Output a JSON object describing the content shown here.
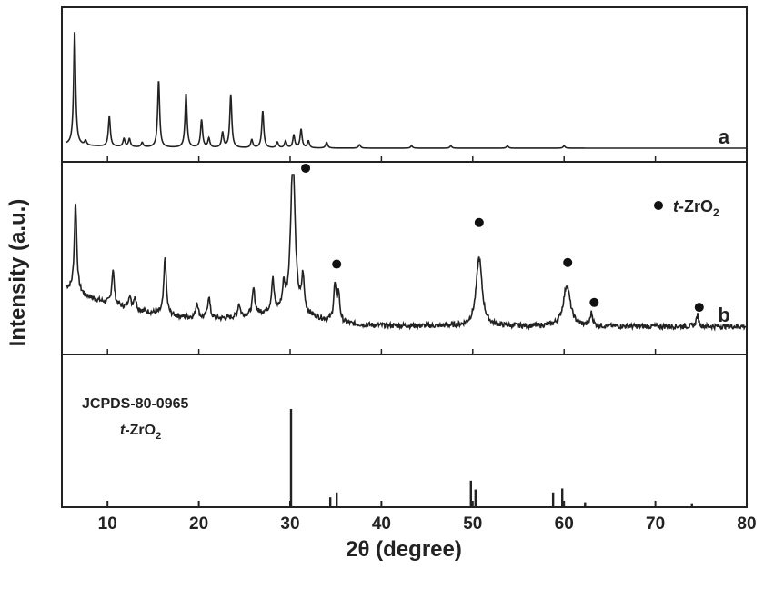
{
  "chart_data": {
    "type": "line",
    "xlabel_prefix": "2θ",
    "xlabel_suffix": " (degree)",
    "ylabel": "Intensity (a.u.)",
    "xlim": [
      5,
      80
    ],
    "xticks": [
      10,
      20,
      30,
      40,
      50,
      60,
      70,
      80
    ],
    "x_tick_labels": [
      "10",
      "20",
      "30",
      "40",
      "50",
      "60",
      "70",
      "80"
    ],
    "panels": [
      {
        "label": "a",
        "series_kind": "line",
        "baseline": 3,
        "ylim": [
          0,
          100
        ],
        "peaks": [
          {
            "x": 6.4,
            "y": 100
          },
          {
            "x": 7.6,
            "y": 4
          },
          {
            "x": 10.2,
            "y": 26
          },
          {
            "x": 11.8,
            "y": 7
          },
          {
            "x": 12.4,
            "y": 7
          },
          {
            "x": 13.8,
            "y": 4
          },
          {
            "x": 15.6,
            "y": 58
          },
          {
            "x": 18.6,
            "y": 47
          },
          {
            "x": 20.3,
            "y": 24
          },
          {
            "x": 21.1,
            "y": 8
          },
          {
            "x": 22.6,
            "y": 13
          },
          {
            "x": 23.5,
            "y": 46
          },
          {
            "x": 25.8,
            "y": 7
          },
          {
            "x": 27.0,
            "y": 32
          },
          {
            "x": 28.6,
            "y": 5
          },
          {
            "x": 29.5,
            "y": 6
          },
          {
            "x": 30.4,
            "y": 11
          },
          {
            "x": 31.2,
            "y": 16
          },
          {
            "x": 32.0,
            "y": 6
          },
          {
            "x": 34.0,
            "y": 5
          },
          {
            "x": 37.6,
            "y": 3
          },
          {
            "x": 43.3,
            "y": 2
          },
          {
            "x": 47.6,
            "y": 2
          },
          {
            "x": 53.8,
            "y": 2
          },
          {
            "x": 60.0,
            "y": 2
          }
        ]
      },
      {
        "label": "b",
        "series_kind": "line",
        "ylim": [
          0,
          100
        ],
        "peaks": [
          {
            "x": 6.5,
            "y": 56
          },
          {
            "x": 10.6,
            "y": 22
          },
          {
            "x": 12.4,
            "y": 8
          },
          {
            "x": 13.0,
            "y": 8
          },
          {
            "x": 16.3,
            "y": 36
          },
          {
            "x": 19.8,
            "y": 10
          },
          {
            "x": 21.1,
            "y": 14
          },
          {
            "x": 24.4,
            "y": 8
          },
          {
            "x": 26.0,
            "y": 16
          },
          {
            "x": 28.1,
            "y": 20
          },
          {
            "x": 29.3,
            "y": 14
          },
          {
            "x": 30.3,
            "y": 100
          },
          {
            "x": 31.4,
            "y": 22
          },
          {
            "x": 34.9,
            "y": 22
          },
          {
            "x": 35.3,
            "y": 18
          },
          {
            "x": 50.7,
            "y": 43
          },
          {
            "x": 60.3,
            "y": 26
          },
          {
            "x": 63.0,
            "y": 8
          },
          {
            "x": 74.6,
            "y": 7
          }
        ],
        "markers": [
          {
            "x": 31.7,
            "y": 104
          },
          {
            "x": 35.1,
            "y": 44
          },
          {
            "x": 50.7,
            "y": 70
          },
          {
            "x": 60.4,
            "y": 45
          },
          {
            "x": 63.3,
            "y": 20
          },
          {
            "x": 74.8,
            "y": 17
          }
        ],
        "legend": {
          "label_prefix": "t",
          "label_main": "-ZrO",
          "label_sub": "2",
          "position": "top-right"
        }
      },
      {
        "label": "JCPDS-80-0965",
        "series_kind": "sticks",
        "ylim": [
          0,
          100
        ],
        "caption_line1": "JCPDS-80-0965",
        "caption_line2_prefix": "t",
        "caption_line2_main": "-ZrO",
        "caption_line2_sub": "2",
        "sticks": [
          {
            "x": 30.1,
            "y": 100
          },
          {
            "x": 34.4,
            "y": 10
          },
          {
            "x": 35.1,
            "y": 15
          },
          {
            "x": 49.8,
            "y": 27
          },
          {
            "x": 50.3,
            "y": 18
          },
          {
            "x": 58.8,
            "y": 15
          },
          {
            "x": 59.8,
            "y": 19
          },
          {
            "x": 62.3,
            "y": 5
          },
          {
            "x": 74.0,
            "y": 4
          }
        ]
      }
    ]
  }
}
